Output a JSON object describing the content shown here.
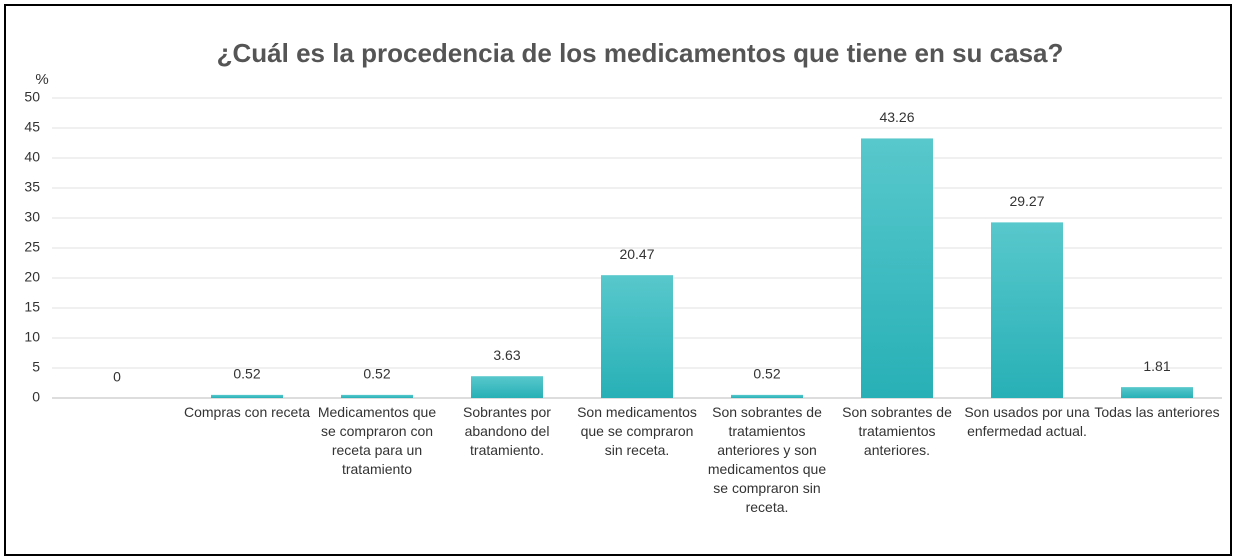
{
  "chart_data": {
    "type": "bar",
    "title": "¿Cuál es la procedencia de los medicamentos que tiene en su casa?",
    "y_label": "%",
    "categories": [
      null,
      "Compras con receta",
      "Medicamentos que se compraron con receta para un tratamiento",
      "Sobrantes por abandono del tratamiento.",
      "Son medicamentos que se compraron sin receta.",
      "Son sobrantes de tratamientos anteriores y son medicamentos que se compraron sin receta.",
      "Son sobrantes de tratamientos anteriores.",
      "Son usados por una enfermedad actual.",
      "Todas las anteriores"
    ],
    "values": [
      0,
      0.52,
      0.52,
      3.63,
      20.47,
      0.52,
      43.26,
      29.27,
      1.81
    ],
    "color": "#3bbcc2",
    "ylim": [
      0,
      50
    ],
    "yticks": [
      0,
      5,
      10,
      15,
      20,
      25,
      30,
      35,
      40,
      45,
      50
    ],
    "grid": true
  }
}
